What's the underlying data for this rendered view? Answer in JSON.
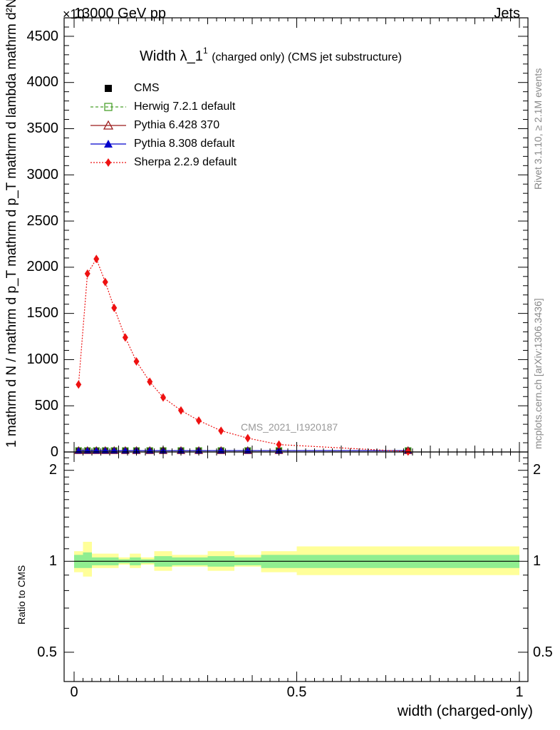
{
  "header": {
    "left": "13000 GeV pp",
    "right": "Jets",
    "exponent_label": "×10"
  },
  "side_labels": {
    "rivet": "Rivet 3.1.10, ≥ 2.1M events",
    "mcplots": "mcplots.cern.ch [arXiv:1306.3436]"
  },
  "title": {
    "main": "Width λ_1",
    "sup": "1",
    "sub": "(charged only) (CMS jet substructure)"
  },
  "watermark": "CMS_2021_I1920187",
  "axes": {
    "y_main_label": "1  mathrm d N / mathrm d p_T mathrm d p_T mathrm d lambda  mathrm d²N",
    "y_ratio_label": "Ratio to CMS",
    "x_label": "width (charged-only)",
    "x_ticks": [
      "0",
      "0.5",
      "1"
    ],
    "y_main_ticks": [
      "0",
      "500",
      "1000",
      "1500",
      "2000",
      "2500",
      "3000",
      "3500",
      "4000",
      "4500"
    ],
    "y_ratio_ticks": [
      "0.5",
      "1",
      "2"
    ]
  },
  "legend": [
    {
      "label": "CMS",
      "color": "#000000",
      "marker": "square-filled",
      "line": "none"
    },
    {
      "label": "Herwig 7.2.1 default",
      "color": "#4aa02c",
      "marker": "square-open",
      "line": "dashed"
    },
    {
      "label": "Pythia 6.428 370",
      "color": "#9b1b1b",
      "marker": "triangle-open",
      "line": "solid"
    },
    {
      "label": "Pythia 8.308 default",
      "color": "#0000cc",
      "marker": "triangle-filled",
      "line": "solid"
    },
    {
      "label": "Sherpa 2.2.9 default",
      "color": "#ee1111",
      "marker": "diamond-filled",
      "line": "dotted"
    }
  ],
  "chart_data": {
    "type": "line",
    "title": "Width λ_1^1 (charged only) (CMS jet substructure)",
    "xlabel": "width (charged-only)",
    "ylabel": "1 / mathrm d N / mathrm d p_T mathrm d p_T mathrm d lambda mathrm d²N",
    "xlim": [
      0,
      1
    ],
    "ylim": [
      0,
      4700
    ],
    "grid": false,
    "legend_position": "top-left",
    "x": [
      0.01,
      0.03,
      0.05,
      0.07,
      0.09,
      0.115,
      0.14,
      0.17,
      0.2,
      0.24,
      0.28,
      0.33,
      0.39,
      0.46,
      0.75
    ],
    "series": [
      {
        "name": "CMS",
        "values": [
          15,
          15,
          15,
          15,
          15,
          15,
          15,
          15,
          15,
          15,
          15,
          15,
          15,
          15,
          15
        ]
      },
      {
        "name": "Herwig 7.2.1 default",
        "values": [
          15,
          15,
          15,
          15,
          15,
          15,
          15,
          15,
          15,
          15,
          15,
          15,
          15,
          15,
          15
        ]
      },
      {
        "name": "Pythia 6.428 370",
        "values": [
          15,
          15,
          15,
          15,
          15,
          15,
          15,
          15,
          15,
          15,
          15,
          15,
          15,
          15,
          15
        ]
      },
      {
        "name": "Pythia 8.308 default",
        "values": [
          15,
          15,
          15,
          15,
          15,
          15,
          15,
          15,
          15,
          15,
          15,
          15,
          15,
          15,
          15
        ]
      },
      {
        "name": "Sherpa 2.2.9 default",
        "values": [
          730,
          1930,
          2090,
          1840,
          1560,
          1240,
          980,
          760,
          590,
          450,
          340,
          230,
          150,
          80,
          5
        ]
      }
    ],
    "ratio_panel": {
      "ylabel": "Ratio to CMS",
      "ylim": [
        0.4,
        2.3
      ],
      "reference": 1,
      "bins": [
        {
          "x0": 0.0,
          "x1": 0.02,
          "inner": [
            0.95,
            1.05
          ],
          "outer": [
            0.92,
            1.08
          ]
        },
        {
          "x0": 0.02,
          "x1": 0.04,
          "inner": [
            0.95,
            1.07
          ],
          "outer": [
            0.89,
            1.16
          ]
        },
        {
          "x0": 0.04,
          "x1": 0.06,
          "inner": [
            0.97,
            1.03
          ],
          "outer": [
            0.95,
            1.06
          ]
        },
        {
          "x0": 0.06,
          "x1": 0.08,
          "inner": [
            0.97,
            1.03
          ],
          "outer": [
            0.95,
            1.06
          ]
        },
        {
          "x0": 0.08,
          "x1": 0.1,
          "inner": [
            0.97,
            1.03
          ],
          "outer": [
            0.95,
            1.06
          ]
        },
        {
          "x0": 0.1,
          "x1": 0.125,
          "inner": [
            0.985,
            1.015
          ],
          "outer": [
            0.975,
            1.03
          ]
        },
        {
          "x0": 0.125,
          "x1": 0.15,
          "inner": [
            0.97,
            1.03
          ],
          "outer": [
            0.95,
            1.06
          ]
        },
        {
          "x0": 0.15,
          "x1": 0.18,
          "inner": [
            0.985,
            1.015
          ],
          "outer": [
            0.975,
            1.03
          ]
        },
        {
          "x0": 0.18,
          "x1": 0.22,
          "inner": [
            0.96,
            1.04
          ],
          "outer": [
            0.93,
            1.08
          ]
        },
        {
          "x0": 0.22,
          "x1": 0.26,
          "inner": [
            0.97,
            1.03
          ],
          "outer": [
            0.96,
            1.05
          ]
        },
        {
          "x0": 0.26,
          "x1": 0.3,
          "inner": [
            0.97,
            1.03
          ],
          "outer": [
            0.96,
            1.05
          ]
        },
        {
          "x0": 0.3,
          "x1": 0.36,
          "inner": [
            0.96,
            1.04
          ],
          "outer": [
            0.93,
            1.08
          ]
        },
        {
          "x0": 0.36,
          "x1": 0.42,
          "inner": [
            0.97,
            1.03
          ],
          "outer": [
            0.96,
            1.05
          ]
        },
        {
          "x0": 0.42,
          "x1": 0.5,
          "inner": [
            0.95,
            1.05
          ],
          "outer": [
            0.92,
            1.08
          ]
        },
        {
          "x0": 0.5,
          "x1": 1.0,
          "inner": [
            0.95,
            1.05
          ],
          "outer": [
            0.9,
            1.12
          ]
        }
      ]
    }
  },
  "colors": {
    "inner_band": "#90ee90",
    "outer_band": "#ffff99",
    "frame": "#000000",
    "watermark": "#999999"
  }
}
